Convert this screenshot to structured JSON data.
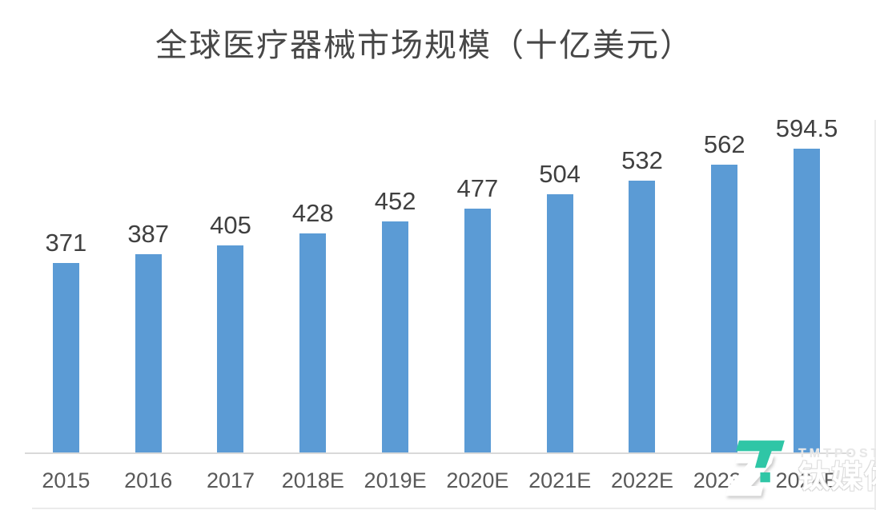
{
  "chart_data": {
    "type": "bar",
    "title": "全球医疗器械市场规模（十亿美元）",
    "categories": [
      "2015",
      "2016",
      "2017",
      "2018E",
      "2019E",
      "2020E",
      "2021E",
      "2022E",
      "2023E",
      "2024E"
    ],
    "values": [
      371,
      387,
      405,
      428,
      452,
      477,
      504,
      532,
      562,
      594.5
    ],
    "xlabel": "",
    "ylabel": "",
    "ylim": [
      0,
      600
    ],
    "gridlines": false,
    "legend": "none",
    "data_labels": true,
    "bar_color": "#5B9BD5",
    "value_label_color": "#404040",
    "tick_label_color": "#595959",
    "axis_line_color": "#D9D9D9",
    "title_color": "#474747"
  },
  "watermark": {
    "brand_en": "TMTPOST",
    "brand_cn": "钛媒体",
    "logo_icon": "tmtpost-logo",
    "accent_color": "#2FC6A6"
  }
}
